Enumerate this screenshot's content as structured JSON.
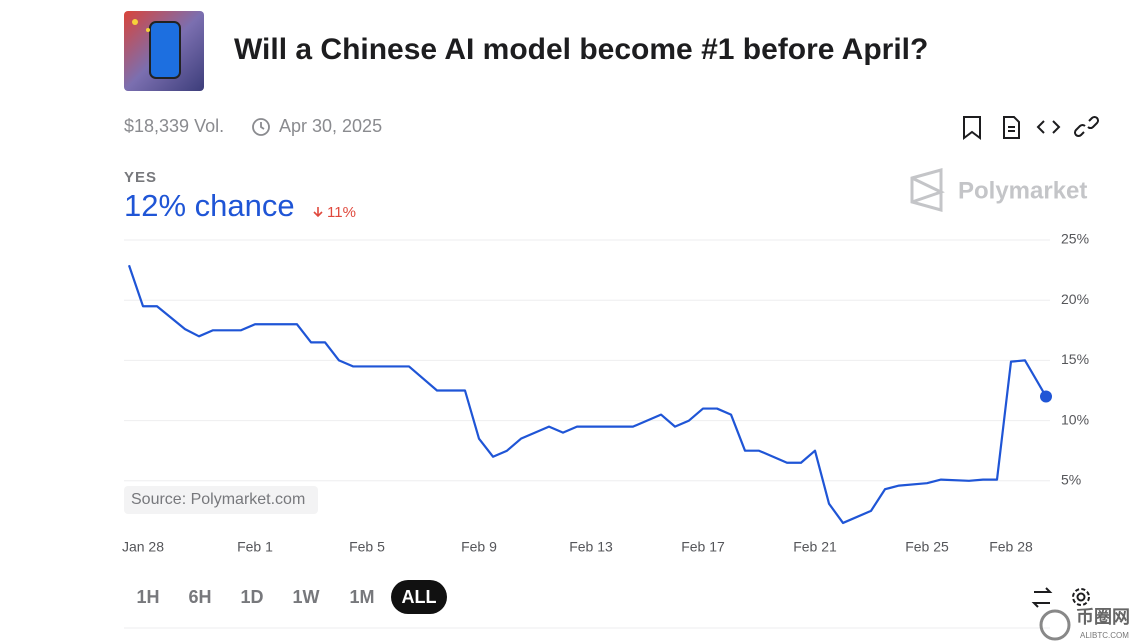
{
  "header": {
    "title": "Will a Chinese AI model become #1 before April?",
    "volume": "$18,339 Vol.",
    "end_date": "Apr 30, 2025"
  },
  "summary": {
    "chance": "12% chance",
    "change": "11%"
  },
  "brand": "Polymarket",
  "source": "Source: Polymarket.com",
  "chart_data": {
    "type": "line",
    "x": [
      -0.5,
      0,
      0.5,
      1.5,
      2,
      2.5,
      3.5,
      4,
      5.5,
      6,
      6.5,
      7,
      7.5,
      9.5,
      10.5,
      11.5,
      12,
      12.5,
      13,
      13.5,
      14.5,
      15,
      15.5,
      17.5,
      18.5,
      19,
      19.5,
      20,
      20.5,
      21,
      21.5,
      22,
      23,
      23.5,
      24,
      24.5,
      25,
      26,
      26.5,
      27,
      28,
      28.5,
      29.5,
      30,
      30.5,
      31,
      31.5,
      32.25
    ],
    "series": [
      {
        "name": "YES",
        "color": "#1f55d6",
        "values": [
          22.9,
          19.5,
          19.5,
          17.6,
          17,
          17.5,
          17.5,
          18,
          18,
          16.5,
          16.5,
          15,
          14.5,
          14.5,
          12.5,
          12.5,
          8.5,
          7,
          7.5,
          8.5,
          9.5,
          9,
          9.5,
          9.5,
          10.5,
          9.5,
          10,
          11,
          11,
          10.5,
          7.5,
          7.5,
          6.5,
          6.5,
          7.5,
          3.1,
          1.5,
          2.5,
          4.3,
          4.6,
          4.8,
          5.1,
          5,
          5.1,
          5.1,
          14.9,
          15,
          12
        ]
      }
    ],
    "xlim": [
      -0.5,
      32.25
    ],
    "xticks": [
      {
        "value": 0,
        "label": "Jan 28"
      },
      {
        "value": 4,
        "label": "Feb 1"
      },
      {
        "value": 8,
        "label": "Feb 5"
      },
      {
        "value": 12,
        "label": "Feb 9"
      },
      {
        "value": 16,
        "label": "Feb 13"
      },
      {
        "value": 20,
        "label": "Feb 17"
      },
      {
        "value": 24,
        "label": "Feb 21"
      },
      {
        "value": 28,
        "label": "Feb 25"
      },
      {
        "value": 31,
        "label": "Feb 28"
      }
    ],
    "ylim": [
      0,
      25
    ],
    "yticks": [
      {
        "value": 5,
        "label": "5%"
      },
      {
        "value": 10,
        "label": "10%"
      },
      {
        "value": 15,
        "label": "15%"
      },
      {
        "value": 20,
        "label": "20%"
      },
      {
        "value": 25,
        "label": "25%"
      }
    ],
    "grid": true
  },
  "controls": {
    "ranges": [
      "1H",
      "6H",
      "1D",
      "1W",
      "1M",
      "ALL"
    ],
    "active": "ALL"
  },
  "watermark": {
    "name": "币圈网",
    "site": "ALIBTC.COM"
  }
}
